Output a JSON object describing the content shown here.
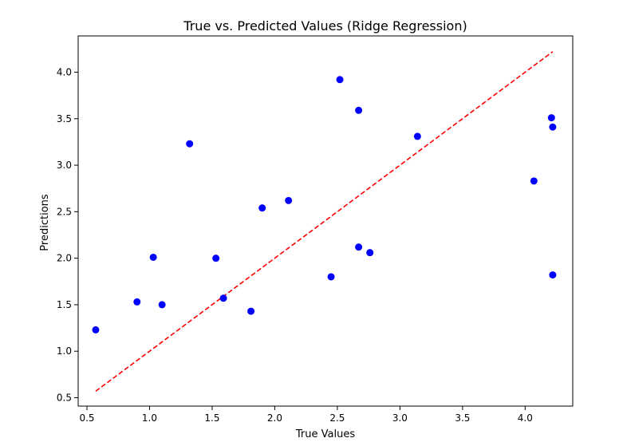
{
  "chart_data": {
    "type": "scatter",
    "title": "True vs. Predicted Values (Ridge Regression)",
    "xlabel": "True Values",
    "ylabel": "Predictions",
    "xlim": [
      0.43,
      4.38
    ],
    "ylim": [
      0.41,
      4.39
    ],
    "x_ticks": [
      "0.5",
      "1.0",
      "1.5",
      "2.0",
      "2.5",
      "3.0",
      "3.5",
      "4.0"
    ],
    "y_ticks": [
      "0.5",
      "1.0",
      "1.5",
      "2.0",
      "2.5",
      "3.0",
      "3.5",
      "4.0"
    ],
    "grid": false,
    "points": [
      {
        "x": 0.57,
        "y": 1.23
      },
      {
        "x": 0.9,
        "y": 1.53
      },
      {
        "x": 1.03,
        "y": 2.01
      },
      {
        "x": 1.1,
        "y": 1.5
      },
      {
        "x": 1.32,
        "y": 3.23
      },
      {
        "x": 1.53,
        "y": 2.0
      },
      {
        "x": 1.59,
        "y": 1.57
      },
      {
        "x": 1.81,
        "y": 1.43
      },
      {
        "x": 1.9,
        "y": 2.54
      },
      {
        "x": 2.11,
        "y": 2.62
      },
      {
        "x": 2.45,
        "y": 1.8
      },
      {
        "x": 2.52,
        "y": 3.92
      },
      {
        "x": 2.67,
        "y": 3.59
      },
      {
        "x": 2.67,
        "y": 2.12
      },
      {
        "x": 2.76,
        "y": 2.06
      },
      {
        "x": 3.14,
        "y": 3.31
      },
      {
        "x": 4.07,
        "y": 2.83
      },
      {
        "x": 4.21,
        "y": 3.51
      },
      {
        "x": 4.22,
        "y": 3.41
      },
      {
        "x": 4.22,
        "y": 1.82
      }
    ],
    "reference_line": {
      "x": [
        0.57,
        4.22
      ],
      "y": [
        0.57,
        4.22
      ],
      "style": "dashed"
    },
    "colors": {
      "points": "#0000ff",
      "reference_line": "#ff0000"
    }
  }
}
